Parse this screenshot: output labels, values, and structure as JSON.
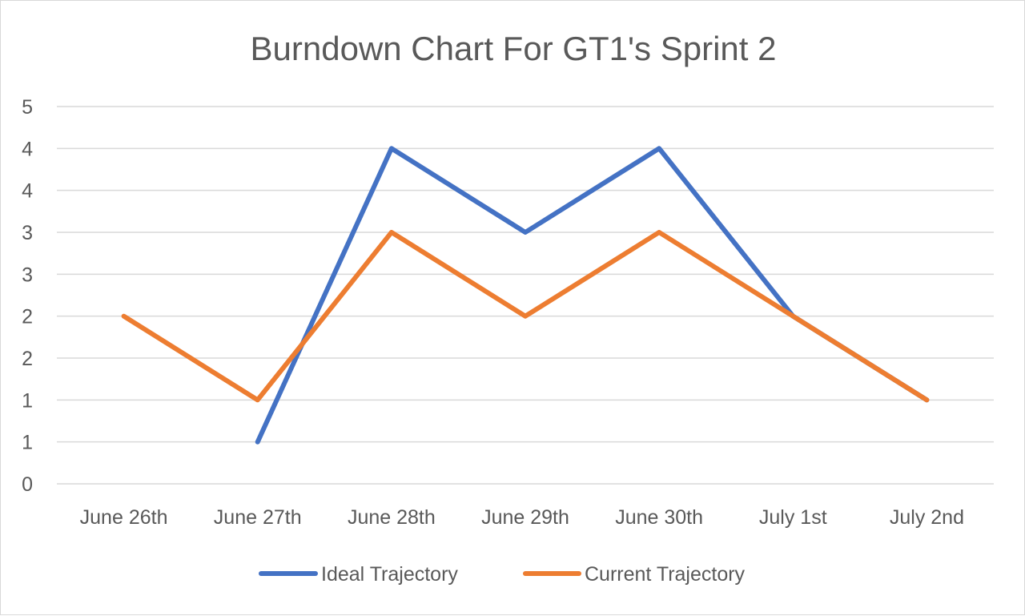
{
  "chart_data": {
    "type": "line",
    "title": "Burndown Chart For GT1's Sprint 2",
    "xlabel": "",
    "ylabel": "",
    "categories": [
      "June 26th",
      "June 27th",
      "June 28th",
      "June 29th",
      "June 30th",
      "July 1st",
      "July 2nd"
    ],
    "y_tick_labels": [
      "0",
      "1",
      "1",
      "2",
      "2",
      "3",
      "3",
      "4",
      "4",
      "5"
    ],
    "ylim": [
      0,
      4.5
    ],
    "grid": true,
    "legend_position": "bottom",
    "series": [
      {
        "name": "Ideal Trajectory",
        "color": "#4472c4",
        "values": [
          null,
          0.5,
          4,
          3,
          4,
          2,
          1
        ]
      },
      {
        "name": "Current Trajectory",
        "color": "#ed7d31",
        "values": [
          2,
          1,
          3,
          2,
          3,
          2,
          1
        ]
      }
    ]
  }
}
